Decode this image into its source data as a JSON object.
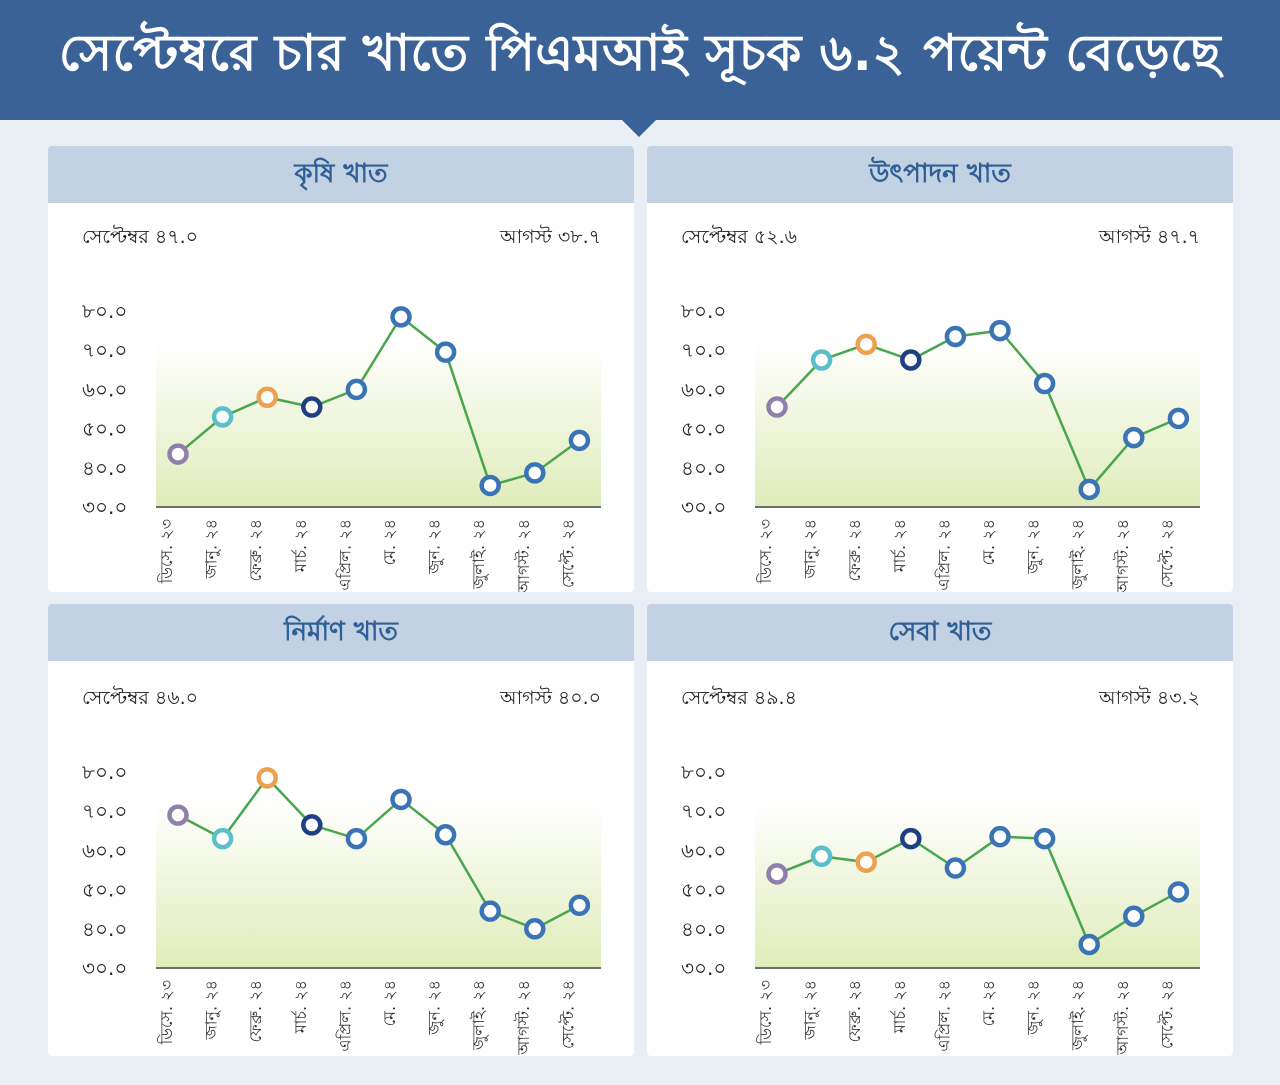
{
  "title": "সেপ্টেম্বরে চার খাতে পিএমআই সূচক ৬.২ পয়েন্ট বেড়েছে",
  "colors": {
    "banner": "#3a6296",
    "header_bg": "#c3d2e2",
    "header_text": "#2f5f96",
    "line": "#4aa64e",
    "dot_purple": "#8f80ab",
    "dot_teal": "#5bbfc9",
    "dot_orange": "#eda050",
    "dot_navy": "#1f3f83",
    "dot_blue": "#3a74b5"
  },
  "chart_data": [
    {
      "type": "line",
      "title": "কৃষি খাত",
      "left_label": "সেপ্টেম্বর ৪৭.০",
      "right_label": "আগস্ট ৩৮.৭",
      "x": [
        "ডিসে. ২৩",
        "জানু. ২৪",
        "ফেব্রু. ২৪",
        "মার্চ. ২৪",
        "এপ্রিল. ২৪",
        "মে. ২৪",
        "জুন. ২৪",
        "জুলাই. ২৪",
        "আগস্ট. ২৪",
        "সেপ্টে. ২৪"
      ],
      "values": [
        43.5,
        53.0,
        58.0,
        55.5,
        60.0,
        78.5,
        69.5,
        35.5,
        38.7,
        47.0
      ],
      "ylim": [
        30,
        80
      ],
      "yticks": [
        "৩০.০",
        "৪০.০",
        "৫০.০",
        "৬০.০",
        "৭০.০",
        "৮০.০"
      ]
    },
    {
      "type": "line",
      "title": "উৎপাদন খাত",
      "left_label": "সেপ্টেম্বর ৫২.৬",
      "right_label": "আগস্ট ৪৭.৭",
      "x": [
        "ডিসে. ২৩",
        "জানু. ২৪",
        "ফেব্রু. ২৪",
        "মার্চ. ২৪",
        "এপ্রিল. ২৪",
        "মে. ২৪",
        "জুন. ২৪",
        "জুলাই. ২৪",
        "আগস্ট. ২৪",
        "সেপ্টে. ২৪"
      ],
      "values": [
        55.5,
        67.5,
        71.5,
        67.5,
        73.5,
        75.0,
        61.5,
        34.5,
        47.7,
        52.6
      ],
      "ylim": [
        30,
        80
      ],
      "yticks": [
        "৩০.০",
        "৪০.০",
        "৫০.০",
        "৬০.০",
        "৭০.০",
        "৮০.০"
      ]
    },
    {
      "type": "line",
      "title": "নির্মাণ খাত",
      "left_label": "সেপ্টেম্বর ৪৬.০",
      "right_label": "আগস্ট ৪০.০",
      "x": [
        "ডিসে. ২৩",
        "জানু. ২৪",
        "ফেব্রু. ২৪",
        "মার্চ. ২৪",
        "এপ্রিল. ২৪",
        "মে. ২৪",
        "জুন. ২৪",
        "জুলাই. ২৪",
        "আগস্ট. ২৪",
        "সেপ্টে. ২৪"
      ],
      "values": [
        69.0,
        63.0,
        78.5,
        66.5,
        63.0,
        73.0,
        64.0,
        44.5,
        40.0,
        46.0
      ],
      "ylim": [
        30,
        80
      ],
      "yticks": [
        "৩০.০",
        "৪০.০",
        "৫০.০",
        "৬০.০",
        "৭০.০",
        "৮০.০"
      ]
    },
    {
      "type": "line",
      "title": "সেবা খাত",
      "left_label": "সেপ্টেম্বর ৪৯.৪",
      "right_label": "আগস্ট ৪৩.২",
      "x": [
        "ডিসে. ২৩",
        "জানু. ২৪",
        "ফেব্রু. ২৪",
        "মার্চ. ২৪",
        "এপ্রিল. ২৪",
        "মে. ২৪",
        "জুন. ২৪",
        "জুলাই. ২৪",
        "আগস্ট. ২৪",
        "সেপ্টে. ২৪"
      ],
      "values": [
        54.0,
        58.5,
        57.0,
        63.0,
        55.5,
        63.5,
        63.0,
        36.0,
        43.2,
        49.4
      ],
      "ylim": [
        30,
        80
      ],
      "yticks": [
        "৩০.০",
        "৪০.০",
        "৫০.০",
        "৬০.০",
        "৭০.০",
        "৮০.০"
      ]
    }
  ]
}
